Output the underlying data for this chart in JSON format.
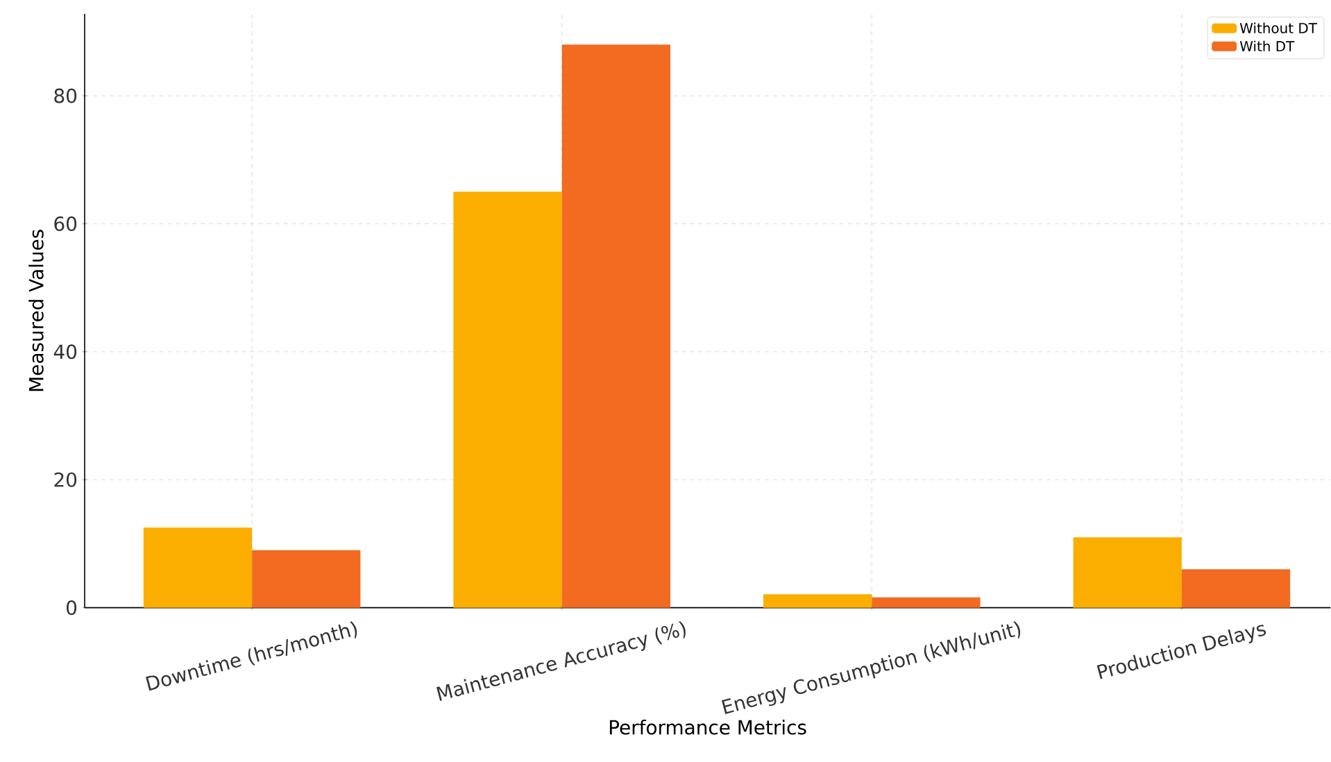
{
  "chart_data": {
    "type": "bar",
    "xlabel": "Performance Metrics",
    "ylabel": "Measured Values",
    "categories": [
      "Downtime (hrs/month)",
      "Maintenance Accuracy (%)",
      "Energy Consumption (kWh/unit)",
      "Production Delays"
    ],
    "series": [
      {
        "name": "Without DT",
        "color": "#fbae00",
        "values": [
          12.5,
          65,
          2.1,
          11
        ]
      },
      {
        "name": "With DT",
        "color": "#f26b21",
        "values": [
          9,
          88,
          1.6,
          6
        ]
      }
    ],
    "ylim": [
      0,
      92.8
    ],
    "yticks": [
      0,
      20,
      40,
      60,
      80
    ],
    "grid": true,
    "legend": "top right"
  }
}
